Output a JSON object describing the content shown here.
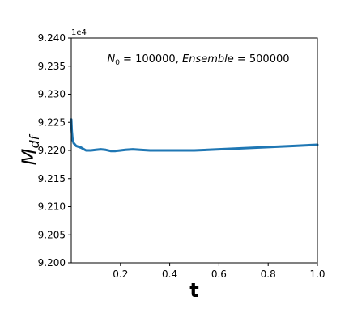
{
  "chart_data": {
    "type": "line",
    "title": "",
    "xlabel": "t",
    "ylabel_main": "M",
    "ylabel_sub": "df",
    "y_offset_label": "1e4",
    "xlim": [
      0.0,
      1.0
    ],
    "ylim": [
      9.2,
      9.24
    ],
    "x_ticks": [
      0.2,
      0.4,
      0.6,
      0.8,
      1.0
    ],
    "x_tick_labels": [
      "0.2",
      "0.4",
      "0.6",
      "0.8",
      "1.0"
    ],
    "y_ticks": [
      9.2,
      9.205,
      9.21,
      9.215,
      9.22,
      9.225,
      9.23,
      9.235,
      9.24
    ],
    "y_tick_labels": [
      "9.200",
      "9.205",
      "9.210",
      "9.215",
      "9.220",
      "9.225",
      "9.230",
      "9.235",
      "9.240"
    ],
    "grid": false,
    "annotation": {
      "n_var": "N",
      "n_sub": "0",
      "n_value": " = 100000, ",
      "ens_var": "Ensemble",
      "ens_value": " = 500000"
    },
    "series": [
      {
        "color": "#1f77b4",
        "x": [
          0.0,
          0.002,
          0.005,
          0.01,
          0.02,
          0.04,
          0.06,
          0.08,
          0.1,
          0.12,
          0.14,
          0.16,
          0.18,
          0.2,
          0.22,
          0.25,
          0.28,
          0.32,
          0.36,
          0.4,
          0.45,
          0.5,
          0.6,
          0.7,
          0.8,
          0.9,
          1.0
        ],
        "y": [
          9.2255,
          9.2235,
          9.222,
          9.2213,
          9.2208,
          9.2205,
          9.22,
          9.22,
          9.2201,
          9.2202,
          9.2201,
          9.2199,
          9.2199,
          9.22,
          9.2201,
          9.2202,
          9.2201,
          9.22,
          9.22,
          9.22,
          9.22,
          9.22,
          9.2202,
          9.2204,
          9.2206,
          9.2208,
          9.221
        ]
      }
    ]
  }
}
